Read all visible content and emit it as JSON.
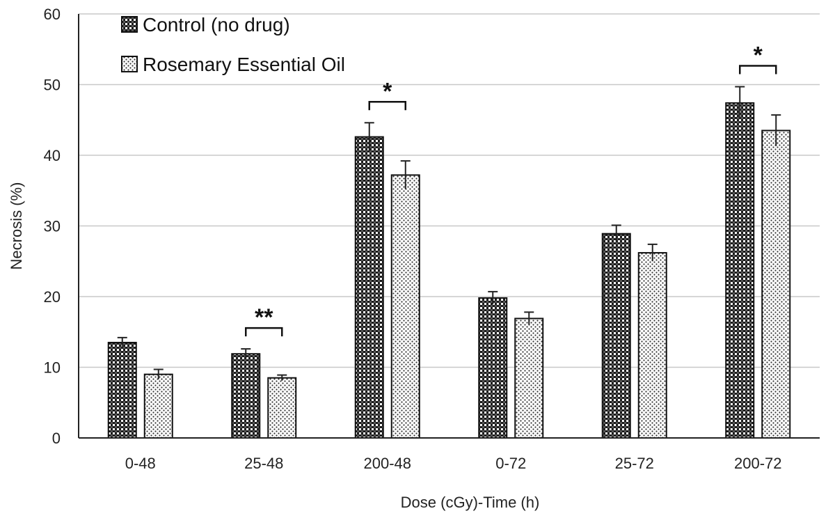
{
  "chart_data": {
    "type": "bar",
    "title": "",
    "xlabel": "Dose (cGy)-Time (h)",
    "ylabel": "Necrosis (%)",
    "ylim": [
      0,
      60
    ],
    "yticks": [
      0,
      10,
      20,
      30,
      40,
      50,
      60
    ],
    "grid": true,
    "legend_position": "top-left",
    "categories": [
      "0-48",
      "25-48",
      "200-48",
      "0-72",
      "25-72",
      "200-72"
    ],
    "series": [
      {
        "name": "Control (no drug)",
        "pattern": "checkerboard",
        "values": [
          13.5,
          11.9,
          42.6,
          19.8,
          28.9,
          47.4
        ],
        "errors": [
          0.7,
          0.7,
          2.0,
          0.9,
          1.2,
          2.3
        ]
      },
      {
        "name": "Rosemary Essential Oil",
        "pattern": "dotted",
        "values": [
          9.0,
          8.5,
          37.2,
          16.9,
          26.2,
          43.5
        ],
        "errors": [
          0.7,
          0.4,
          2.0,
          0.9,
          1.2,
          2.2
        ]
      }
    ],
    "annotations": [
      {
        "category": "25-48",
        "label": "**"
      },
      {
        "category": "200-48",
        "label": "*"
      },
      {
        "category": "200-72",
        "label": "*"
      }
    ]
  }
}
